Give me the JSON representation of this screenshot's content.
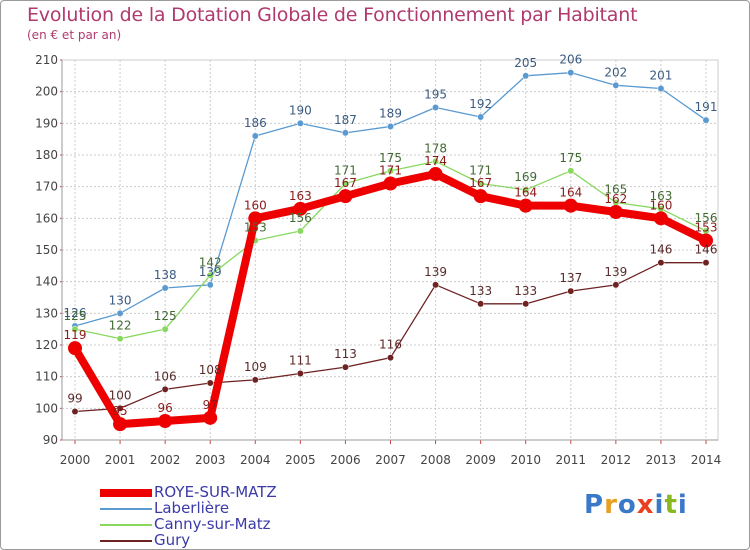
{
  "page": {
    "title": "Evolution de la Dotation Globale de Fonctionnement par Habitant",
    "subtitle": "(en € et par an)"
  },
  "logo": {
    "text": "Proxiti",
    "colors": [
      "#3a78c8",
      "#e8a020",
      "#3a78c8",
      "#e84020",
      "#3a78c8",
      "#8ab820",
      "#3a78c8"
    ]
  },
  "chart_data": {
    "type": "line",
    "title": "Evolution de la Dotation Globale de Fonctionnement par Habitant",
    "subtitle": "(en € et par an)",
    "xlabel": "",
    "ylabel": "",
    "x": [
      "2000",
      "2001",
      "2002",
      "2003",
      "2004",
      "2005",
      "2006",
      "2007",
      "2008",
      "2009",
      "2010",
      "2011",
      "2012",
      "2013",
      "2014"
    ],
    "ylim": [
      90,
      210
    ],
    "yticks": [
      90,
      100,
      110,
      120,
      130,
      140,
      150,
      160,
      170,
      180,
      190,
      200,
      210
    ],
    "grid": true,
    "legend": "bottom-left",
    "series": [
      {
        "name": "ROYE-SUR-MATZ",
        "color": "#ee0000",
        "values": [
          119,
          95,
          96,
          97,
          160,
          163,
          167,
          171,
          174,
          167,
          164,
          164,
          162,
          160,
          153
        ]
      },
      {
        "name": "Laberlière",
        "color": "#5a9ad0",
        "values": [
          126,
          130,
          138,
          139,
          186,
          190,
          187,
          189,
          195,
          192,
          205,
          206,
          202,
          201,
          191
        ]
      },
      {
        "name": "Canny-sur-Matz",
        "color": "#88d860",
        "values": [
          125,
          122,
          125,
          142,
          153,
          156,
          171,
          175,
          178,
          171,
          169,
          175,
          165,
          163,
          156
        ]
      },
      {
        "name": "Gury",
        "color": "#6e2222",
        "values": [
          99,
          100,
          106,
          108,
          109,
          111,
          113,
          116,
          139,
          133,
          133,
          137,
          139,
          146,
          146
        ]
      }
    ]
  }
}
